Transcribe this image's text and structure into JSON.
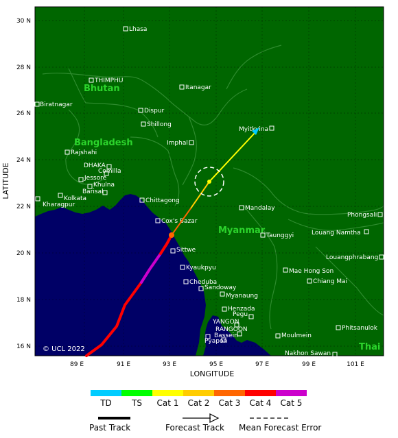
{
  "axes": {
    "x_title": "LONGITUDE",
    "y_title": "LATITUDE",
    "x_ticks": [
      "89 E",
      "91 E",
      "93 E",
      "95 E",
      "97 E",
      "99 E",
      "101 E"
    ],
    "y_ticks": [
      "30 N",
      "28 N",
      "26 N",
      "24 N",
      "22 N",
      "20 N",
      "18 N",
      "16 N"
    ]
  },
  "countries": [
    "Bhutan",
    "Bangladesh",
    "Myanmar",
    "Thai"
  ],
  "cities": [
    "Lhasa",
    "THIMPHU",
    "Itanagar",
    "Biratnagar",
    "Dispur",
    "Shillong",
    "Imphal",
    "Myitkyina",
    "Rajshahi",
    "DHAKA",
    "Comilla",
    "Jessore",
    "Khulna",
    "Barisal",
    "Kolkata",
    "Kharagpur",
    "Chittagong",
    "Cox's Bazar",
    "Mandalay",
    "Taunggyi",
    "Sittwe",
    "Kyaukpyu",
    "Cheduba",
    "Sandoway",
    "Myanaung",
    "Henzada",
    "Pegu",
    "YANGON",
    "RANGOON",
    "Bassein",
    "Pyapon",
    "Moulmein",
    "Phongsali",
    "Louang Namtha",
    "Louangphrabang",
    "Mae Hong Son",
    "Chiang Mai",
    "Phitsanulok",
    "Nakhon Sawan"
  ],
  "copyright": "© UCL 2022",
  "legend": {
    "categories": [
      {
        "label": "TD",
        "color": "#00ccff"
      },
      {
        "label": "TS",
        "color": "#00ff00"
      },
      {
        "label": "Cat 1",
        "color": "#ffff00"
      },
      {
        "label": "Cat 2",
        "color": "#ffcc00"
      },
      {
        "label": "Cat 3",
        "color": "#ff6600"
      },
      {
        "label": "Cat 4",
        "color": "#ff0000"
      },
      {
        "label": "Cat 5",
        "color": "#cc00cc"
      }
    ],
    "past_track": "Past Track",
    "forecast_track": "Forecast Track",
    "mean_error": "Mean Forecast Error"
  },
  "colors": {
    "ocean": "#000066",
    "land": "#006600",
    "border": "#2e8b2e",
    "country_label": "#2cd42c"
  }
}
